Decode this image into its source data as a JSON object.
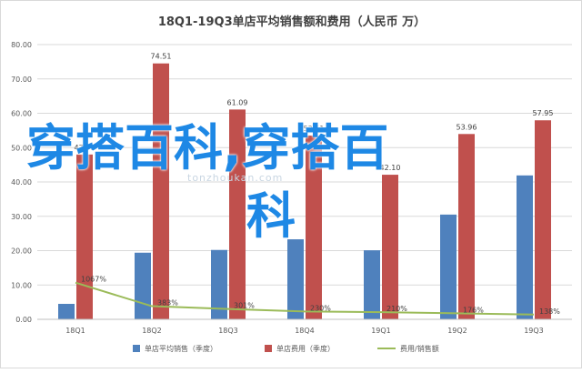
{
  "chart_data": {
    "type": "bar",
    "title": "18Q1-19Q3单店平均销售额和费用（人民币 万）",
    "categories": [
      "18Q1",
      "18Q2",
      "18Q3",
      "18Q4",
      "19Q1",
      "19Q2",
      "19Q3"
    ],
    "ylim": [
      0,
      80
    ],
    "yticks": [
      "0.00",
      "10.00",
      "20.00",
      "30.00",
      "40.00",
      "50.00",
      "60.00",
      "70.00",
      "80.00"
    ],
    "grid": true,
    "legend_position": "bottom",
    "series": [
      {
        "name": "单店平均销售（季度）",
        "type": "bar",
        "color": "#4f81bd",
        "values": [
          4.5,
          19.4,
          20.2,
          23.3,
          20.1,
          30.5,
          41.9
        ]
      },
      {
        "name": "单店费用（季度）",
        "type": "bar",
        "color": "#c0504d",
        "values": [
          47.99,
          74.51,
          61.09,
          53.51,
          42.1,
          53.96,
          57.95
        ],
        "labels": [
          "47.99",
          "74.51",
          "61.09",
          "53.51",
          "42.10",
          "53.96",
          "57.95"
        ]
      },
      {
        "name": "费用/销售额",
        "type": "line",
        "color": "#9bbb59",
        "values": [
          10.67,
          3.83,
          3.01,
          2.3,
          2.1,
          1.76,
          1.38
        ],
        "labels": [
          "1067%",
          "383%",
          "301%",
          "230%",
          "210%",
          "176%",
          "138%"
        ]
      }
    ]
  },
  "overlay": {
    "line1": "穿搭百科,穿搭百",
    "line2": "科",
    "watermark": "tonzhoukan.com"
  }
}
